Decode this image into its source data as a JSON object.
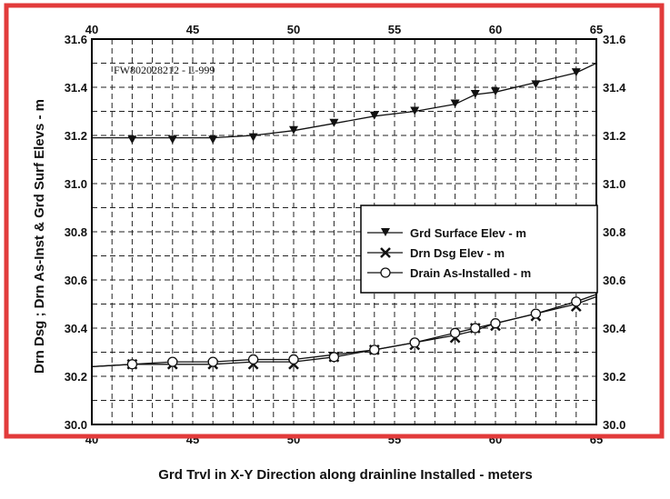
{
  "chart_data": {
    "type": "line",
    "annotation": "FW802028212 - L-999",
    "xlabel": "Grd Trvl in X-Y Direction along drainline Installed - meters",
    "ylabel": "Drn Dsg ; Drn As-Inst & Grd Surf Elevs - m",
    "xlim": [
      40,
      65
    ],
    "ylim": [
      30.0,
      31.6
    ],
    "x_ticks": [
      "40",
      "45",
      "50",
      "55",
      "60",
      "65"
    ],
    "x_ticks_top": [
      "40",
      "45",
      "50",
      "55",
      "60",
      "65"
    ],
    "y_ticks": [
      "30.0",
      "30.2",
      "30.4",
      "30.6",
      "30.8",
      "31.0",
      "31.2",
      "31.4",
      "31.6"
    ],
    "y_ticks_right": [
      "30.0",
      "30.2",
      "30.4",
      "30.6",
      "30.8",
      "31.0",
      "31.2",
      "31.4",
      "31.6"
    ],
    "grid": true,
    "legend_position": "center-right",
    "series": [
      {
        "name": "Grd Surface Elev - m",
        "marker": "triangle-down",
        "line": [
          [
            40,
            31.19
          ],
          [
            42,
            31.19
          ],
          [
            44,
            31.19
          ],
          [
            46,
            31.19
          ],
          [
            48,
            31.2
          ],
          [
            50,
            31.22
          ],
          [
            52,
            31.25
          ],
          [
            54,
            31.28
          ],
          [
            56,
            31.3
          ],
          [
            58,
            31.33
          ],
          [
            59,
            31.37
          ],
          [
            60,
            31.38
          ],
          [
            62,
            31.42
          ],
          [
            64,
            31.46
          ],
          [
            65,
            31.5
          ]
        ],
        "markers": [
          [
            42,
            31.18
          ],
          [
            44,
            31.18
          ],
          [
            46,
            31.18
          ],
          [
            48,
            31.19
          ],
          [
            50,
            31.22
          ],
          [
            52,
            31.25
          ],
          [
            54,
            31.28
          ],
          [
            56,
            31.3
          ],
          [
            58,
            31.33
          ],
          [
            59,
            31.37
          ],
          [
            60,
            31.38
          ],
          [
            62,
            31.41
          ],
          [
            64,
            31.46
          ]
        ]
      },
      {
        "name": "Drn Dsg Elev - m",
        "marker": "x",
        "line": [
          [
            40,
            30.24
          ],
          [
            42,
            30.25
          ],
          [
            44,
            30.25
          ],
          [
            46,
            30.25
          ],
          [
            48,
            30.26
          ],
          [
            50,
            30.26
          ],
          [
            52,
            30.28
          ],
          [
            54,
            30.31
          ],
          [
            56,
            30.34
          ],
          [
            58,
            30.37
          ],
          [
            59,
            30.39
          ],
          [
            60,
            30.42
          ],
          [
            62,
            30.46
          ],
          [
            64,
            30.5
          ],
          [
            65,
            30.53
          ]
        ],
        "markers": [
          [
            42,
            30.25
          ],
          [
            44,
            30.25
          ],
          [
            46,
            30.25
          ],
          [
            48,
            30.25
          ],
          [
            50,
            30.25
          ],
          [
            52,
            30.28
          ],
          [
            54,
            30.31
          ],
          [
            56,
            30.33
          ],
          [
            58,
            30.36
          ],
          [
            59,
            30.4
          ],
          [
            60,
            30.41
          ],
          [
            62,
            30.45
          ],
          [
            64,
            30.49
          ]
        ]
      },
      {
        "name": "Drain As-Installed - m",
        "marker": "circle-open",
        "line": [
          [
            40,
            30.24
          ],
          [
            42,
            30.25
          ],
          [
            44,
            30.26
          ],
          [
            46,
            30.26
          ],
          [
            48,
            30.27
          ],
          [
            50,
            30.27
          ],
          [
            52,
            30.29
          ],
          [
            54,
            30.31
          ],
          [
            56,
            30.34
          ],
          [
            58,
            30.38
          ],
          [
            59,
            30.4
          ],
          [
            60,
            30.42
          ],
          [
            62,
            30.46
          ],
          [
            64,
            30.51
          ],
          [
            65,
            30.54
          ]
        ],
        "markers": [
          [
            42,
            30.25
          ],
          [
            44,
            30.26
          ],
          [
            46,
            30.26
          ],
          [
            48,
            30.27
          ],
          [
            50,
            30.27
          ],
          [
            52,
            30.28
          ],
          [
            54,
            30.31
          ],
          [
            56,
            30.34
          ],
          [
            58,
            30.38
          ],
          [
            59,
            30.4
          ],
          [
            60,
            30.42
          ],
          [
            62,
            30.46
          ],
          [
            64,
            30.51
          ]
        ]
      }
    ]
  }
}
